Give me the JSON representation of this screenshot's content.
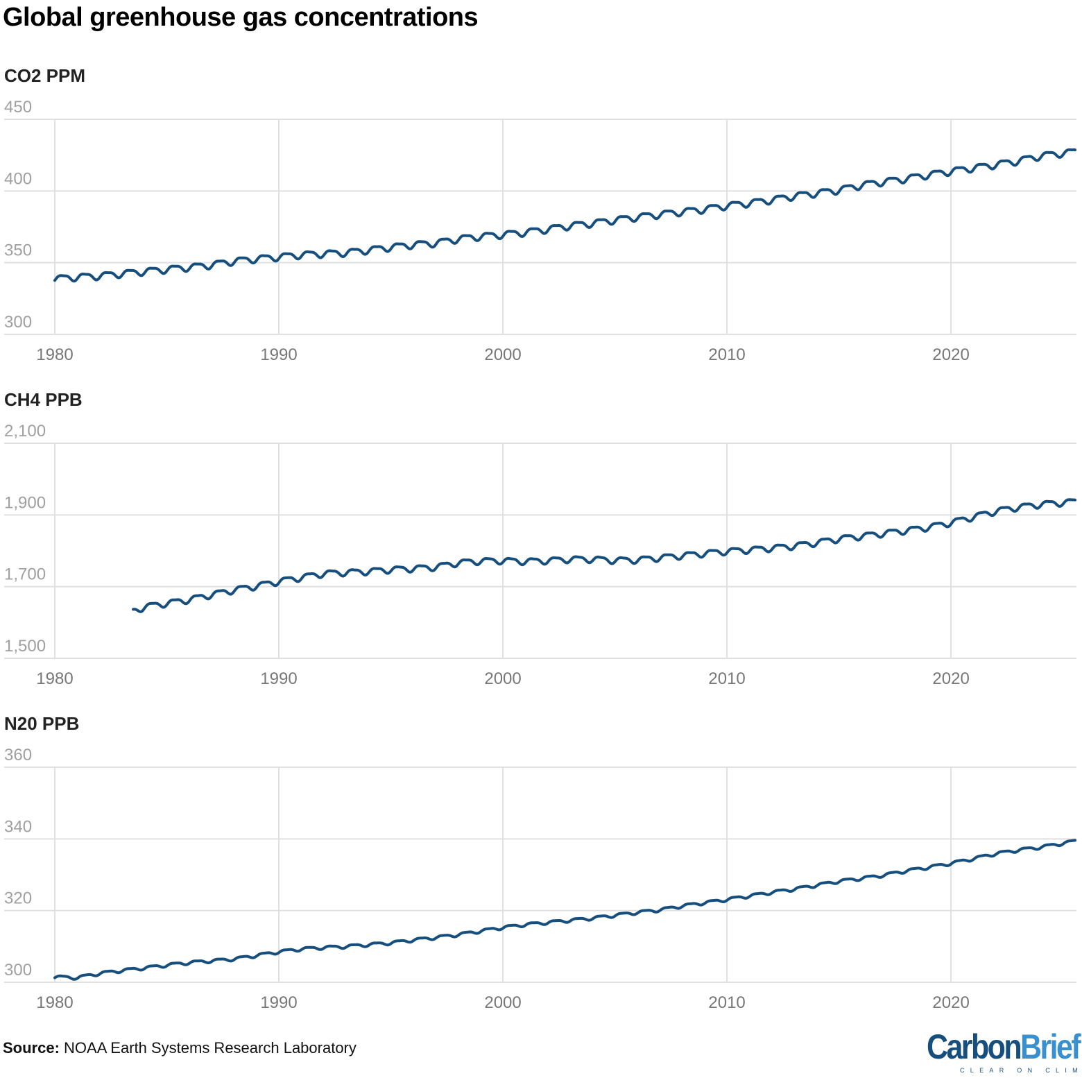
{
  "title": "Global greenhouse gas concentrations",
  "source_label": "Source:",
  "source_text": " NOAA Earth Systems Research Laboratory",
  "logo": {
    "part1": "Carbon",
    "part2": "Brief",
    "tagline": "CLEAR ON CLIMATE"
  },
  "colors": {
    "line": "#164f7e",
    "grid": "#e0e0e0",
    "tick_label": "#a0a0a0",
    "x_tick_label": "#777777"
  },
  "chart_data": [
    {
      "type": "line",
      "title": "CO2 PPM",
      "ylim": [
        300,
        450
      ],
      "yticks": [
        300,
        350,
        400,
        450
      ],
      "ytick_labels": [
        "300",
        "350",
        "400",
        "450"
      ],
      "xlim": [
        1980,
        2025.6
      ],
      "xticks": [
        1980,
        1990,
        2000,
        2010,
        2020
      ],
      "xtick_labels": [
        "1980",
        "1990",
        "2000",
        "2010",
        "2020"
      ],
      "grid": true,
      "seasonal_amplitude": 2.2,
      "x": [
        1980,
        1981,
        1982,
        1983,
        1984,
        1985,
        1986,
        1987,
        1988,
        1989,
        1990,
        1991,
        1992,
        1993,
        1994,
        1995,
        1996,
        1997,
        1998,
        1999,
        2000,
        2001,
        2002,
        2003,
        2004,
        2005,
        2006,
        2007,
        2008,
        2009,
        2010,
        2011,
        2012,
        2013,
        2014,
        2015,
        2016,
        2017,
        2018,
        2019,
        2020,
        2021,
        2022,
        2023,
        2024,
        2025
      ],
      "values": [
        338.9,
        340.1,
        340.9,
        342.5,
        344.0,
        345.5,
        346.9,
        348.6,
        351.2,
        352.8,
        354.1,
        355.6,
        356.4,
        357.1,
        358.9,
        360.9,
        362.7,
        363.8,
        366.7,
        368.4,
        369.7,
        371.3,
        373.5,
        375.9,
        377.6,
        379.9,
        381.9,
        383.8,
        385.6,
        387.4,
        389.9,
        391.7,
        393.9,
        396.6,
        398.6,
        400.8,
        404.2,
        406.6,
        408.7,
        411.4,
        413.9,
        416.2,
        418.5,
        421.1,
        424.6,
        426.5
      ]
    },
    {
      "type": "line",
      "title": "CH4 PPB",
      "ylim": [
        1500,
        2100
      ],
      "yticks": [
        1500,
        1700,
        1900,
        2100
      ],
      "ytick_labels": [
        "1,500",
        "1,700",
        "1,900",
        "2,100"
      ],
      "xlim": [
        1980,
        2025.6
      ],
      "xticks": [
        1980,
        1990,
        2000,
        2010,
        2020
      ],
      "xtick_labels": [
        "1980",
        "1990",
        "2000",
        "2010",
        "2020"
      ],
      "grid": true,
      "seasonal_amplitude": 8,
      "x": [
        1983.5,
        1984,
        1985,
        1986,
        1987,
        1988,
        1989,
        1990,
        1991,
        1992,
        1993,
        1994,
        1995,
        1996,
        1997,
        1998,
        1999,
        2000,
        2001,
        2002,
        2003,
        2004,
        2005,
        2006,
        2007,
        2008,
        2009,
        2010,
        2011,
        2012,
        2013,
        2014,
        2015,
        2016,
        2017,
        2018,
        2019,
        2020,
        2021,
        2022,
        2023,
        2024,
        2025
      ],
      "values": [
        1632,
        1644,
        1654,
        1664,
        1678,
        1691,
        1702,
        1715,
        1726,
        1737,
        1740,
        1743,
        1748,
        1751,
        1755,
        1767,
        1772,
        1773,
        1771,
        1773,
        1777,
        1777,
        1774,
        1775,
        1781,
        1787,
        1793,
        1799,
        1803,
        1808,
        1814,
        1823,
        1834,
        1841,
        1849,
        1857,
        1866,
        1879,
        1895,
        1911,
        1922,
        1930,
        1935
      ]
    },
    {
      "type": "line",
      "title": "N20 PPB",
      "ylim": [
        300,
        360
      ],
      "yticks": [
        300,
        320,
        340,
        360
      ],
      "ytick_labels": [
        "300",
        "320",
        "340",
        "360"
      ],
      "xlim": [
        1980,
        2025.6
      ],
      "xticks": [
        1980,
        1990,
        2000,
        2010,
        2020
      ],
      "xtick_labels": [
        "1980",
        "1990",
        "2000",
        "2010",
        "2020"
      ],
      "grid": true,
      "seasonal_amplitude": 0.4,
      "x": [
        1980,
        1981,
        1982,
        1983,
        1984,
        1985,
        1986,
        1987,
        1988,
        1989,
        1990,
        1991,
        1992,
        1993,
        1994,
        1995,
        1996,
        1997,
        1998,
        1999,
        2000,
        2001,
        2002,
        2003,
        2004,
        2005,
        2006,
        2007,
        2008,
        2009,
        2010,
        2011,
        2012,
        2013,
        2014,
        2015,
        2016,
        2017,
        2018,
        2019,
        2020,
        2021,
        2022,
        2023,
        2024,
        2025
      ],
      "values": [
        301.5,
        301.3,
        302.5,
        303.3,
        304.0,
        304.8,
        305.5,
        306.0,
        306.5,
        307.5,
        308.5,
        309.3,
        309.7,
        310.0,
        310.5,
        311.0,
        311.8,
        312.5,
        313.3,
        314.3,
        315.3,
        316.1,
        316.7,
        317.3,
        317.9,
        318.7,
        319.5,
        320.2,
        321.3,
        322.2,
        323.1,
        324.1,
        325.1,
        326.0,
        327.1,
        328.2,
        329.0,
        329.9,
        331.1,
        332.1,
        333.2,
        334.5,
        335.9,
        336.9,
        337.7,
        338.8
      ]
    }
  ]
}
